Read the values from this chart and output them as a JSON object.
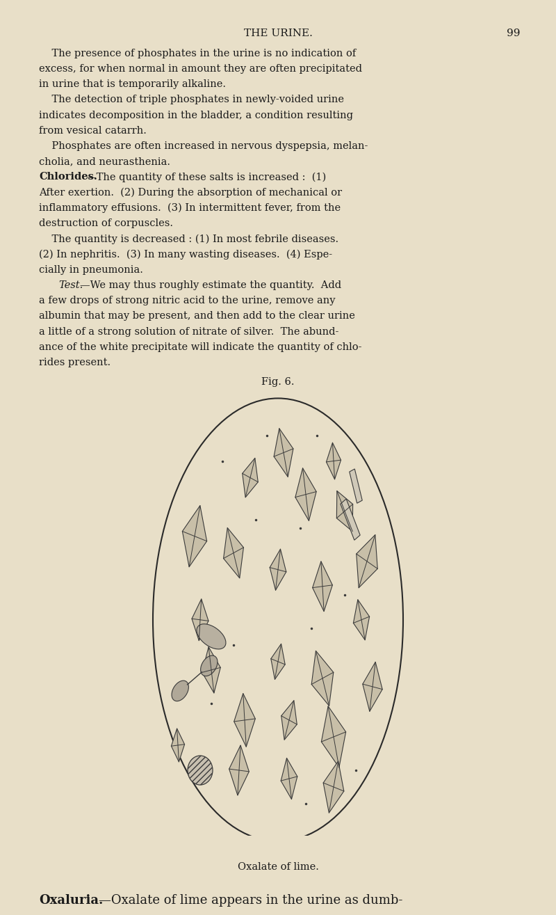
{
  "background_color": "#e8dfc8",
  "text_color": "#1a1a1a",
  "header": "THE URINE.",
  "page_number": "99",
  "fig_label": "Fig. 6.",
  "fig_caption": "Oxalate of lime."
}
